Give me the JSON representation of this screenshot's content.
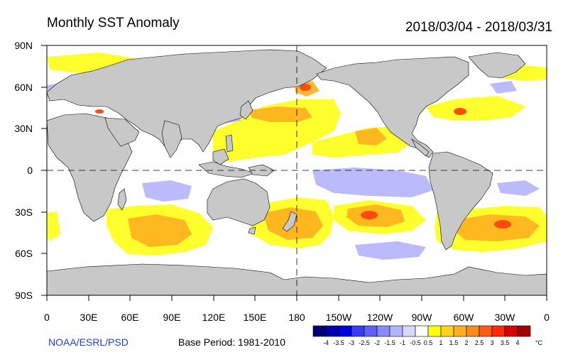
{
  "header": {
    "title": "Monthly SST Anomaly",
    "date_range": "2018/03/04 - 2018/03/31"
  },
  "footer": {
    "credit": "NOAA/ESRL/PSD",
    "base_period": "Base Period: 1981-2010"
  },
  "map": {
    "lat_labels": [
      "90N",
      "60N",
      "30N",
      "0",
      "30S",
      "60S",
      "90S"
    ],
    "lon_labels": [
      "0",
      "30E",
      "60E",
      "90E",
      "120E",
      "150E",
      "180",
      "150W",
      "120W",
      "90W",
      "60W",
      "30W",
      "0"
    ],
    "land_color": "#c8c8c8",
    "ocean_color": "#ffffff"
  },
  "legend": {
    "unit": "°C",
    "tick_labels": [
      "-4",
      "-3.5",
      "-3",
      "-2.5",
      "-2",
      "-1.5",
      "-1",
      "-0.5",
      "0.5",
      "1",
      "1.5",
      "2",
      "2.5",
      "3",
      "3.5",
      "4"
    ],
    "colors": [
      "#00007a",
      "#0000b0",
      "#0000e0",
      "#3b3bf5",
      "#6060f8",
      "#8a8af9",
      "#b4b4fb",
      "#d8d8fd",
      "#ffffff",
      "#ffff00",
      "#ffd21e",
      "#ffb01e",
      "#ff8c1a",
      "#ff5a14",
      "#ff2a0a",
      "#d80000",
      "#a00000"
    ]
  }
}
